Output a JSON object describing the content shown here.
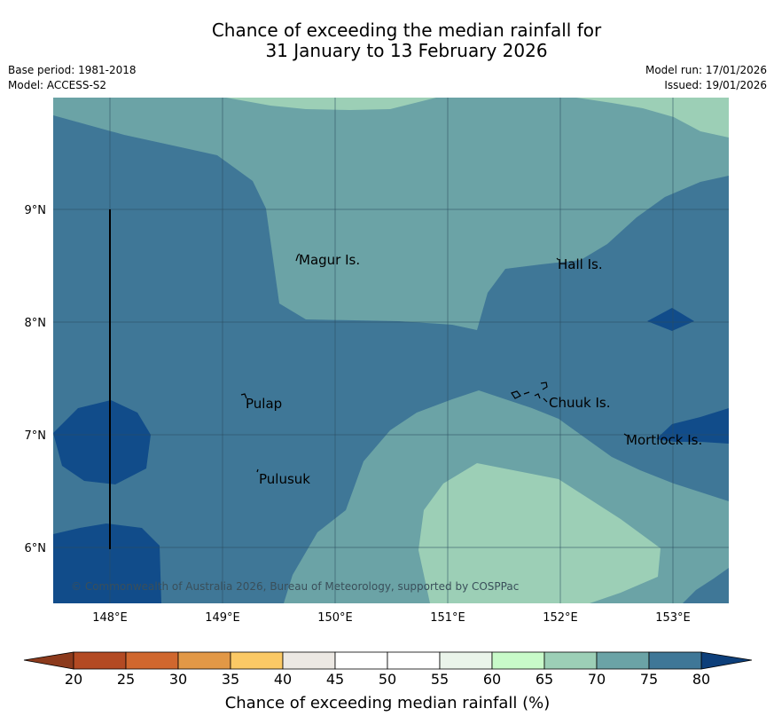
{
  "title": {
    "line1": "Chance of exceeding the median rainfall for",
    "line2": "31 January to 13 February 2026"
  },
  "meta": {
    "base_period": "Base period: 1981-2018",
    "model": "Model: ACCESS-S2",
    "model_run": "Model run: 17/01/2026",
    "issued": "Issued: 19/01/2026"
  },
  "map": {
    "lat_labels": [
      "9°N",
      "8°N",
      "7°N",
      "6°N"
    ],
    "lon_labels": [
      "148°E",
      "149°E",
      "150°E",
      "151°E",
      "152°E",
      "153°E"
    ],
    "places": [
      "Magur Is.",
      "Hall Is.",
      "Pulap",
      "Chuuk Is.",
      "Mortlock Is.",
      "Pulusuk"
    ],
    "copyright": "© Commonwealth of Australia 2026, Bureau of Meteorology, supported by COSPPac"
  },
  "colorbar": {
    "title": "Chance of exceeding median rainfall (%)",
    "ticks": [
      "20",
      "25",
      "30",
      "35",
      "40",
      "45",
      "50",
      "55",
      "60",
      "65",
      "70",
      "75",
      "80"
    ],
    "under_color": "#8c3a1c",
    "over_color": "#0d3f7a",
    "segment_colors": [
      "#b34a23",
      "#d0672e",
      "#e29846",
      "#fbc965",
      "#ece8e3",
      "#ffffff",
      "#ffffff",
      "#eaf4ea",
      "#c8fac9",
      "#9ccfb6",
      "#6ba3a6",
      "#3f7797"
    ]
  },
  "legend_colors": {
    "c60_65": "#c8fac9",
    "c65_70": "#9ccfb6",
    "c70_75": "#6ba3a6",
    "c75_80": "#3f7797",
    "c80_plus": "#114c8a"
  }
}
